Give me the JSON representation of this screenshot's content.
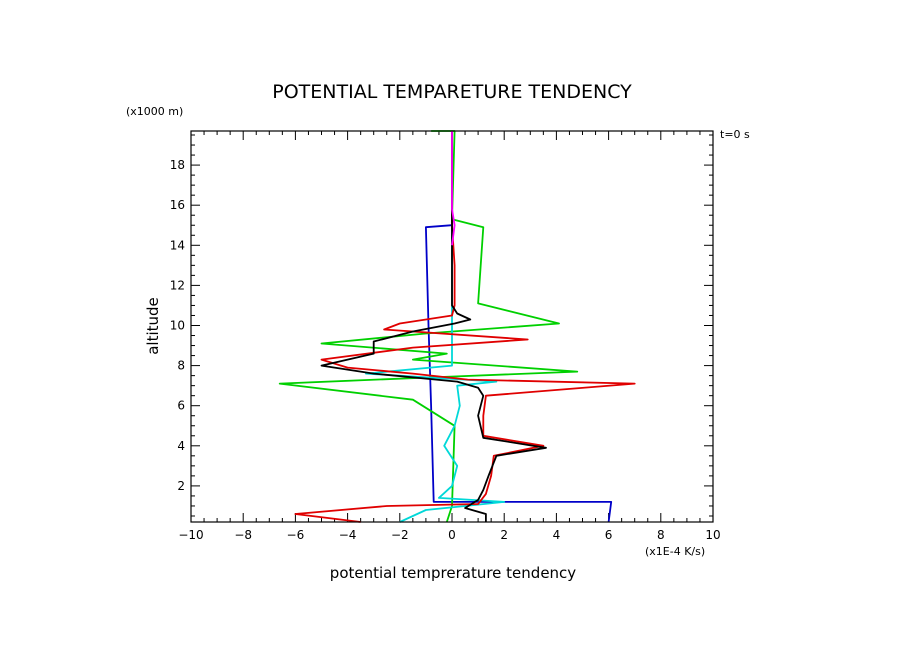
{
  "chart_data": {
    "type": "line",
    "title": "POTENTIAL TEMPARETURE TENDENCY",
    "xlabel": "potential temprerature tendency",
    "ylabel": "altitude",
    "x_unit": "(x1E-4 K/s)",
    "y_unit": "(x1000 m)",
    "annotation": "t=0 s",
    "xlim": [
      -10,
      10
    ],
    "ylim": [
      0.2,
      19.7
    ],
    "xticks": [
      -10,
      -8,
      -6,
      -4,
      -2,
      0,
      2,
      4,
      6,
      8,
      10
    ],
    "yticks": [
      2,
      4,
      6,
      8,
      10,
      12,
      14,
      16,
      18
    ],
    "grid": false,
    "series": [
      {
        "color": "#0000c8",
        "points": [
          [
            6.0,
            0.2
          ],
          [
            6.1,
            1.2
          ],
          [
            -0.7,
            1.2
          ],
          [
            -0.8,
            6.0
          ],
          [
            -0.9,
            10.0
          ],
          [
            -1.0,
            14.9
          ],
          [
            0.0,
            15.0
          ],
          [
            0.0,
            19.7
          ]
        ]
      },
      {
        "color": "#00d000",
        "points": [
          [
            -0.2,
            0.2
          ],
          [
            0.0,
            1.0
          ],
          [
            0.1,
            5.0
          ],
          [
            -1.5,
            6.3
          ],
          [
            -6.6,
            7.1
          ],
          [
            -1.0,
            7.4
          ],
          [
            4.8,
            7.7
          ],
          [
            -1.5,
            8.3
          ],
          [
            -0.2,
            8.6
          ],
          [
            -5.0,
            9.1
          ],
          [
            -1.0,
            9.6
          ],
          [
            4.1,
            10.1
          ],
          [
            1.0,
            11.1
          ],
          [
            1.2,
            14.9
          ],
          [
            0.0,
            15.3
          ],
          [
            0.1,
            19.7
          ],
          [
            -0.8,
            19.7
          ]
        ]
      },
      {
        "color": "#00d8d8",
        "points": [
          [
            -2.0,
            0.2
          ],
          [
            -1.0,
            0.8
          ],
          [
            0.5,
            1.0
          ],
          [
            2.0,
            1.2
          ],
          [
            -0.5,
            1.4
          ],
          [
            0.0,
            2.0
          ],
          [
            0.2,
            3.0
          ],
          [
            -0.3,
            4.0
          ],
          [
            0.1,
            5.0
          ],
          [
            0.3,
            6.0
          ],
          [
            0.2,
            7.0
          ],
          [
            1.7,
            7.2
          ],
          [
            -3.3,
            7.6
          ],
          [
            0.0,
            8.0
          ],
          [
            0.0,
            9.0
          ],
          [
            0.0,
            19.7
          ]
        ]
      },
      {
        "color": "#e00000",
        "points": [
          [
            -3.5,
            0.2
          ],
          [
            -6.0,
            0.6
          ],
          [
            -2.5,
            1.0
          ],
          [
            1.0,
            1.1
          ],
          [
            1.3,
            1.6
          ],
          [
            1.5,
            2.5
          ],
          [
            1.6,
            3.5
          ],
          [
            3.5,
            4.0
          ],
          [
            1.2,
            4.5
          ],
          [
            1.2,
            5.5
          ],
          [
            1.3,
            6.5
          ],
          [
            7.0,
            7.1
          ],
          [
            0.6,
            7.3
          ],
          [
            -1.5,
            7.6
          ],
          [
            -4.0,
            7.9
          ],
          [
            -5.0,
            8.3
          ],
          [
            -1.5,
            8.9
          ],
          [
            2.9,
            9.3
          ],
          [
            -2.6,
            9.8
          ],
          [
            -2.0,
            10.1
          ],
          [
            0.0,
            10.5
          ],
          [
            0.1,
            11.0
          ],
          [
            0.1,
            13.0
          ],
          [
            0.0,
            15.0
          ],
          [
            0.0,
            19.7
          ]
        ]
      },
      {
        "color": "#000000",
        "points": [
          [
            1.3,
            0.2
          ],
          [
            1.3,
            0.6
          ],
          [
            0.5,
            0.9
          ],
          [
            1.0,
            1.3
          ],
          [
            1.2,
            1.8
          ],
          [
            1.4,
            2.5
          ],
          [
            1.7,
            3.5
          ],
          [
            3.6,
            3.9
          ],
          [
            1.2,
            4.4
          ],
          [
            1.0,
            5.5
          ],
          [
            1.2,
            6.5
          ],
          [
            1.0,
            6.9
          ],
          [
            0.2,
            7.2
          ],
          [
            -3.0,
            7.6
          ],
          [
            -5.0,
            8.0
          ],
          [
            -3.0,
            8.6
          ],
          [
            -3.0,
            9.2
          ],
          [
            -1.5,
            9.7
          ],
          [
            0.1,
            10.1
          ],
          [
            0.7,
            10.3
          ],
          [
            0.2,
            10.6
          ],
          [
            0.0,
            11.0
          ],
          [
            0.0,
            19.7
          ]
        ]
      },
      {
        "color": "#ff00ff",
        "points": [
          [
            0.0,
            14.0
          ],
          [
            0.1,
            15.0
          ],
          [
            0.0,
            15.8
          ],
          [
            0.0,
            19.7
          ]
        ]
      }
    ]
  }
}
